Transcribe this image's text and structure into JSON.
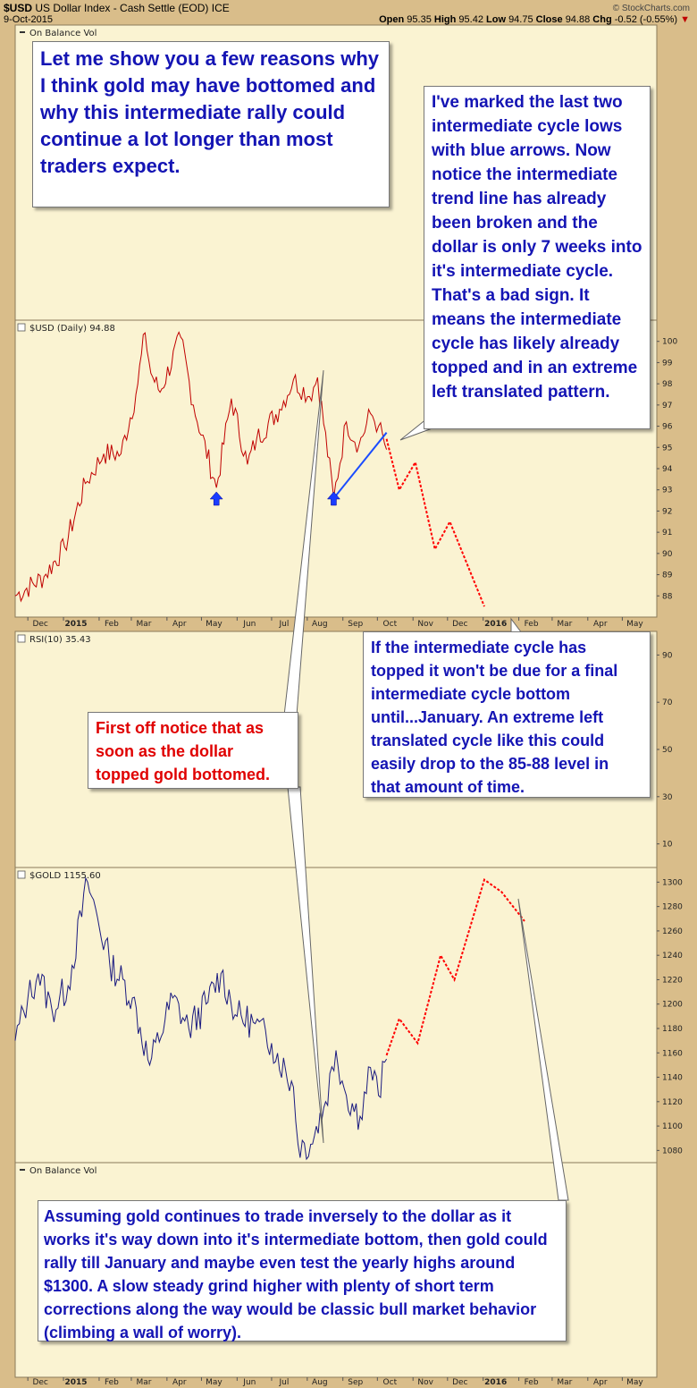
{
  "header": {
    "symbol": "$USD",
    "name": "US Dollar Index - Cash Settle (EOD)",
    "exchange": "ICE",
    "date": "9-Oct-2015",
    "open_label": "Open",
    "open": "95.35",
    "high_label": "High",
    "high": "95.42",
    "low_label": "Low",
    "low": "94.75",
    "close_label": "Close",
    "close": "94.88",
    "chg_label": "Chg",
    "chg": "-0.52 (-0.55%)",
    "source": "© StockCharts.com"
  },
  "panels": {
    "obv_top": "On Balance Vol",
    "usd": "$USD (Daily) 94.88",
    "rsi": "RSI(10) 35.43",
    "gold": "$GOLD 1155.60",
    "obv_bottom": "On Balance Vol"
  },
  "x_axis_months": [
    "Dec",
    "2015",
    "Feb",
    "Mar",
    "Apr",
    "May",
    "Jun",
    "Jul",
    "Aug",
    "Sep",
    "Oct",
    "Nov",
    "Dec",
    "2016",
    "Feb",
    "Mar",
    "Apr",
    "May"
  ],
  "callouts": {
    "intro": "Let me show you a few reasons why I think gold may have bottomed and why this intermediate rally could continue a lot longer than most traders expect.",
    "cycle_lows": "I've marked the last two intermediate cycle lows with blue arrows. Now notice the intermediate trend line has already been broken and the dollar is only 7 weeks into it's intermediate cycle. That's a bad sign. It means the intermediate cycle has likely already topped and in an extreme left translated pattern.",
    "january": "If the intermediate cycle has topped it won't be due for a final intermediate cycle bottom until...January. An extreme left translated cycle like this could easily drop to the 85-88 level in that amount of time.",
    "first_off": "First off notice that as soon as the dollar topped gold bottomed.",
    "assuming": "Assuming gold continues to trade inversely to the dollar as it works it's way down into it's intermediate bottom, then gold could rally till January and maybe even test the yearly highs around $1300. A slow steady grind higher with plenty of short term corrections along the way would be classic bull market behavior (climbing a wall of worry)."
  },
  "colors": {
    "background": "#d9bd8a",
    "panel": "#faf3d2",
    "usd_line": "#c00000",
    "gold_line": "#1a1a80",
    "projection": "#ff0000",
    "trendline": "#1a4cff",
    "arrow": "#1a3cff"
  },
  "chart_data": [
    {
      "type": "line",
      "name": "$USD (Daily)",
      "x_months": [
        "Dec",
        "2015",
        "Feb",
        "Mar",
        "Apr",
        "May",
        "Jun",
        "Jul",
        "Aug",
        "Sep",
        "Oct",
        "Nov",
        "Dec",
        "2016",
        "Feb",
        "Mar",
        "Apr",
        "May"
      ],
      "y_ticks": [
        88,
        89,
        90,
        91,
        92,
        93,
        94,
        95,
        96,
        97,
        98,
        99,
        100
      ],
      "ylim": [
        87.0,
        101.0
      ],
      "x": [
        "2014-11-20",
        "2014-12-15",
        "2015-01-02",
        "2015-01-20",
        "2015-02-05",
        "2015-02-20",
        "2015-03-05",
        "2015-03-13",
        "2015-03-18",
        "2015-03-26",
        "2015-04-13",
        "2015-04-24",
        "2015-05-14",
        "2015-05-27",
        "2015-06-10",
        "2015-06-18",
        "2015-07-08",
        "2015-07-20",
        "2015-08-03",
        "2015-08-10",
        "2015-08-24",
        "2015-09-04",
        "2015-09-15",
        "2015-09-25",
        "2015-10-02",
        "2015-10-09"
      ],
      "values": [
        88.0,
        88.9,
        90.3,
        93.3,
        94.7,
        94.7,
        97.5,
        100.4,
        98.5,
        97.6,
        100.2,
        97.0,
        93.1,
        97.3,
        94.2,
        95.4,
        96.8,
        98.2,
        97.4,
        98.3,
        92.6,
        96.2,
        95.1,
        96.6,
        96.0,
        94.9
      ],
      "projection": {
        "x": [
          "2015-10-09",
          "2015-10-20",
          "2015-11-03",
          "2015-11-20",
          "2015-12-03",
          "2016-01-02"
        ],
        "values": [
          95.4,
          93.0,
          94.3,
          90.2,
          91.5,
          87.5
        ]
      },
      "trendline": {
        "x": [
          "2015-08-24",
          "2015-10-09"
        ],
        "values": [
          92.6,
          95.7
        ]
      },
      "cycle_low_arrows": [
        "2015-05-14",
        "2015-08-24"
      ]
    },
    {
      "type": "line",
      "name": "RSI(10)",
      "y_ticks": [
        10,
        30,
        50,
        70,
        90
      ],
      "ylim": [
        0,
        100
      ]
    },
    {
      "type": "line",
      "name": "$GOLD",
      "y_ticks": [
        1080,
        1100,
        1120,
        1140,
        1160,
        1180,
        1200,
        1220,
        1240,
        1260,
        1280,
        1300
      ],
      "ylim": [
        1070,
        1312
      ],
      "x": [
        "2014-11-20",
        "2014-12-01",
        "2014-12-10",
        "2014-12-22",
        "2015-01-05",
        "2015-01-22",
        "2015-02-10",
        "2015-03-02",
        "2015-03-17",
        "2015-04-06",
        "2015-04-20",
        "2015-05-05",
        "2015-05-18",
        "2015-06-01",
        "2015-06-15",
        "2015-07-01",
        "2015-07-20",
        "2015-07-24",
        "2015-08-04",
        "2015-08-17",
        "2015-08-26",
        "2015-09-04",
        "2015-09-16",
        "2015-09-25",
        "2015-10-02",
        "2015-10-09"
      ],
      "values": [
        1170,
        1205,
        1225,
        1195,
        1215,
        1300,
        1235,
        1205,
        1150,
        1205,
        1180,
        1200,
        1225,
        1190,
        1185,
        1168,
        1132,
        1085,
        1085,
        1120,
        1162,
        1125,
        1108,
        1148,
        1125,
        1155
      ],
      "projection": {
        "x": [
          "2015-10-09",
          "2015-10-20",
          "2015-11-05",
          "2015-11-25",
          "2015-12-07",
          "2016-01-02",
          "2016-01-17",
          "2016-02-06"
        ],
        "values": [
          1158,
          1188,
          1168,
          1240,
          1220,
          1302,
          1292,
          1268
        ]
      }
    }
  ]
}
